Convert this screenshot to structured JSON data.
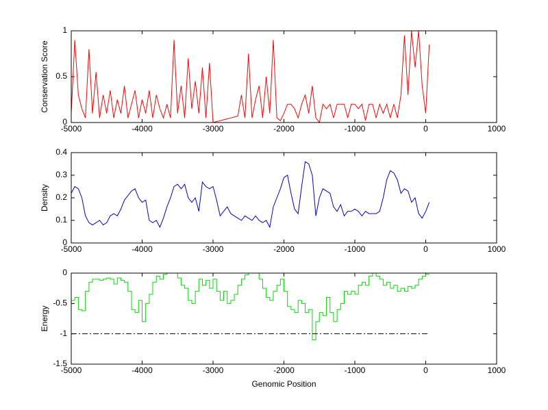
{
  "chart_data": [
    {
      "type": "line",
      "ylabel": "Conservation Score",
      "x": [
        -5000,
        -4950,
        -4900,
        -4850,
        -4800,
        -4750,
        -4700,
        -4650,
        -4600,
        -4550,
        -4500,
        -4450,
        -4400,
        -4350,
        -4300,
        -4250,
        -4200,
        -4150,
        -4100,
        -4050,
        -4000,
        -3950,
        -3900,
        -3850,
        -3800,
        -3750,
        -3700,
        -3650,
        -3600,
        -3550,
        -3500,
        -3450,
        -3400,
        -3350,
        -3300,
        -3250,
        -3200,
        -3150,
        -3100,
        -3050,
        -3000,
        -2950,
        -2900,
        -2850,
        -2800,
        -2750,
        -2700,
        -2650,
        -2600,
        -2550,
        -2500,
        -2450,
        -2400,
        -2350,
        -2300,
        -2250,
        -2200,
        -2150,
        -2100,
        -2050,
        -2000,
        -1950,
        -1900,
        -1850,
        -1800,
        -1750,
        -1700,
        -1650,
        -1600,
        -1550,
        -1500,
        -1450,
        -1400,
        -1350,
        -1300,
        -1250,
        -1200,
        -1150,
        -1100,
        -1050,
        -1000,
        -950,
        -900,
        -850,
        -800,
        -750,
        -700,
        -650,
        -600,
        -550,
        -500,
        -450,
        -400,
        -350,
        -300,
        -250,
        -200,
        -150,
        -100,
        -50,
        0,
        50
      ],
      "series": [
        {
          "color": "#ff0000",
          "values": [
            0.1,
            0.9,
            0.3,
            0.15,
            0.05,
            0.8,
            0.1,
            0.55,
            0.05,
            0.3,
            0.1,
            0.35,
            0.05,
            0.25,
            0.1,
            0.4,
            0.05,
            0.2,
            0.35,
            0.05,
            0.25,
            0.1,
            0.35,
            0.05,
            0.3,
            0.15,
            0.05,
            0.2,
            0.05,
            0.9,
            0.1,
            0.4,
            0.05,
            0.7,
            0.15,
            0.45,
            0.1,
            0.6,
            0.05,
            0.65,
            0,
            0.01,
            0.02,
            0.03,
            0.04,
            0.05,
            0.06,
            0.07,
            0.3,
            0.05,
            0.75,
            0.05,
            0.25,
            0.4,
            0.05,
            0.5,
            0.1,
            0.9,
            0.05,
            0.02,
            0.1,
            0.2,
            0.2,
            0.15,
            0.05,
            0.2,
            0.3,
            0.1,
            0.4,
            0.05,
            0,
            0.2,
            0.15,
            0.2,
            0.05,
            0.2,
            0.2,
            0.2,
            0.05,
            0.2,
            0.2,
            0.15,
            0.2,
            0.02,
            0.2,
            0.2,
            0.05,
            0.2,
            0.1,
            0.2,
            0.05,
            0.2,
            0.05,
            0.3,
            0.95,
            0.3,
            1,
            0.6,
            1,
            0.4,
            0.1,
            0.85
          ]
        }
      ],
      "xlim": [
        -5000,
        1000
      ],
      "xticks": [
        -5000,
        -4000,
        -3000,
        -2000,
        -1000,
        0,
        1000
      ],
      "ylim": [
        0,
        1
      ],
      "yticks": [
        0,
        0.5,
        1
      ]
    },
    {
      "type": "line",
      "ylabel": "Density",
      "x": [
        -5000,
        -4950,
        -4900,
        -4850,
        -4800,
        -4750,
        -4700,
        -4650,
        -4600,
        -4550,
        -4500,
        -4450,
        -4400,
        -4350,
        -4300,
        -4250,
        -4200,
        -4150,
        -4100,
        -4050,
        -4000,
        -3950,
        -3900,
        -3850,
        -3800,
        -3750,
        -3700,
        -3650,
        -3600,
        -3550,
        -3500,
        -3450,
        -3400,
        -3350,
        -3300,
        -3250,
        -3200,
        -3150,
        -3100,
        -3050,
        -3000,
        -2950,
        -2900,
        -2850,
        -2800,
        -2750,
        -2700,
        -2650,
        -2600,
        -2550,
        -2500,
        -2450,
        -2400,
        -2350,
        -2300,
        -2250,
        -2200,
        -2150,
        -2100,
        -2050,
        -2000,
        -1950,
        -1900,
        -1850,
        -1800,
        -1750,
        -1700,
        -1650,
        -1600,
        -1550,
        -1500,
        -1450,
        -1400,
        -1350,
        -1300,
        -1250,
        -1200,
        -1150,
        -1100,
        -1050,
        -1000,
        -950,
        -900,
        -850,
        -800,
        -750,
        -700,
        -650,
        -600,
        -550,
        -500,
        -450,
        -400,
        -350,
        -300,
        -250,
        -200,
        -150,
        -100,
        -50,
        0,
        50
      ],
      "series": [
        {
          "color": "#0000cc",
          "values": [
            0.22,
            0.25,
            0.24,
            0.2,
            0.12,
            0.09,
            0.08,
            0.09,
            0.1,
            0.08,
            0.09,
            0.12,
            0.13,
            0.12,
            0.15,
            0.19,
            0.21,
            0.23,
            0.24,
            0.2,
            0.18,
            0.19,
            0.1,
            0.09,
            0.1,
            0.07,
            0.11,
            0.16,
            0.2,
            0.25,
            0.26,
            0.24,
            0.26,
            0.2,
            0.18,
            0.2,
            0.14,
            0.27,
            0.25,
            0.24,
            0.25,
            0.19,
            0.12,
            0.14,
            0.16,
            0.13,
            0.12,
            0.11,
            0.1,
            0.12,
            0.11,
            0.1,
            0.12,
            0.1,
            0.09,
            0.1,
            0.07,
            0.16,
            0.2,
            0.24,
            0.29,
            0.3,
            0.22,
            0.15,
            0.13,
            0.25,
            0.36,
            0.35,
            0.3,
            0.12,
            0.2,
            0.24,
            0.23,
            0.22,
            0.16,
            0.14,
            0.17,
            0.12,
            0.14,
            0.14,
            0.15,
            0.14,
            0.12,
            0.14,
            0.13,
            0.13,
            0.13,
            0.14,
            0.2,
            0.28,
            0.32,
            0.31,
            0.28,
            0.22,
            0.24,
            0.23,
            0.18,
            0.2,
            0.13,
            0.11,
            0.14,
            0.18
          ]
        }
      ],
      "xlim": [
        -5000,
        1000
      ],
      "xticks": [
        -5000,
        -4000,
        -3000,
        -2000,
        -1000,
        0,
        1000
      ],
      "ylim": [
        0,
        0.4
      ],
      "yticks": [
        0,
        0.1,
        0.2,
        0.3,
        0.4
      ]
    },
    {
      "type": "line",
      "ylabel": "Energy",
      "xlabel": "Genomic Position",
      "x": [
        -5000,
        -4950,
        -4900,
        -4850,
        -4800,
        -4750,
        -4700,
        -4650,
        -4600,
        -4550,
        -4500,
        -4450,
        -4400,
        -4350,
        -4300,
        -4250,
        -4200,
        -4150,
        -4100,
        -4050,
        -4000,
        -3950,
        -3900,
        -3850,
        -3800,
        -3750,
        -3700,
        -3650,
        -3600,
        -3550,
        -3500,
        -3450,
        -3400,
        -3350,
        -3300,
        -3250,
        -3200,
        -3150,
        -3100,
        -3050,
        -3000,
        -2950,
        -2900,
        -2850,
        -2800,
        -2750,
        -2700,
        -2650,
        -2600,
        -2550,
        -2500,
        -2450,
        -2400,
        -2350,
        -2300,
        -2250,
        -2200,
        -2150,
        -2100,
        -2050,
        -2000,
        -1950,
        -1900,
        -1850,
        -1800,
        -1750,
        -1700,
        -1650,
        -1600,
        -1550,
        -1500,
        -1450,
        -1400,
        -1350,
        -1300,
        -1250,
        -1200,
        -1150,
        -1100,
        -1050,
        -1000,
        -950,
        -900,
        -850,
        -800,
        -750,
        -700,
        -650,
        -600,
        -550,
        -500,
        -450,
        -400,
        -350,
        -300,
        -250,
        -200,
        -150,
        -100,
        -50,
        0,
        50
      ],
      "series": [
        {
          "color": "#00dd00",
          "step": true,
          "values": [
            -0.45,
            -0.4,
            -0.6,
            -0.62,
            -0.3,
            -0.15,
            -0.1,
            -0.1,
            -0.12,
            -0.1,
            -0.08,
            -0.1,
            -0.18,
            -0.08,
            -0.12,
            -0.15,
            -0.3,
            -0.6,
            -0.65,
            -0.45,
            -0.8,
            -0.5,
            -0.35,
            -0.15,
            -0.05,
            -0.1,
            -0.02,
            0,
            0,
            0,
            -0.08,
            -0.2,
            -0.25,
            -0.45,
            -0.5,
            -0.3,
            -0.1,
            -0.2,
            -0.12,
            -0.25,
            -0.1,
            -0.3,
            -0.45,
            -0.3,
            -0.5,
            -0.45,
            -0.35,
            -0.2,
            -0.1,
            -0.03,
            0,
            0,
            0,
            -0.1,
            -0.25,
            -0.4,
            -0.45,
            -0.3,
            -0.2,
            -0.1,
            -0.3,
            -0.55,
            -0.6,
            -0.65,
            -0.45,
            -0.5,
            -0.65,
            -0.6,
            -1.1,
            -0.8,
            -0.65,
            -0.7,
            -0.4,
            -0.65,
            -0.8,
            -0.6,
            -0.5,
            -0.3,
            -0.35,
            -0.3,
            -0.35,
            -0.2,
            -0.15,
            -0.2,
            -0.05,
            0,
            -0.05,
            -0.1,
            -0.2,
            -0.15,
            -0.25,
            -0.2,
            -0.3,
            -0.25,
            -0.3,
            -0.22,
            -0.25,
            -0.2,
            -0.1,
            -0.05,
            -0.02,
            -0.02
          ]
        }
      ],
      "hline": {
        "y": -1,
        "xmin": -5000,
        "xmax": 50,
        "color": "#000000",
        "style": "dash-dot"
      },
      "xlim": [
        -5000,
        1000
      ],
      "xticks": [
        -5000,
        -4000,
        -3000,
        -2000,
        -1000,
        0,
        1000
      ],
      "ylim": [
        -1.5,
        0
      ],
      "yticks": [
        -1.5,
        -1,
        -0.5,
        0
      ]
    }
  ]
}
